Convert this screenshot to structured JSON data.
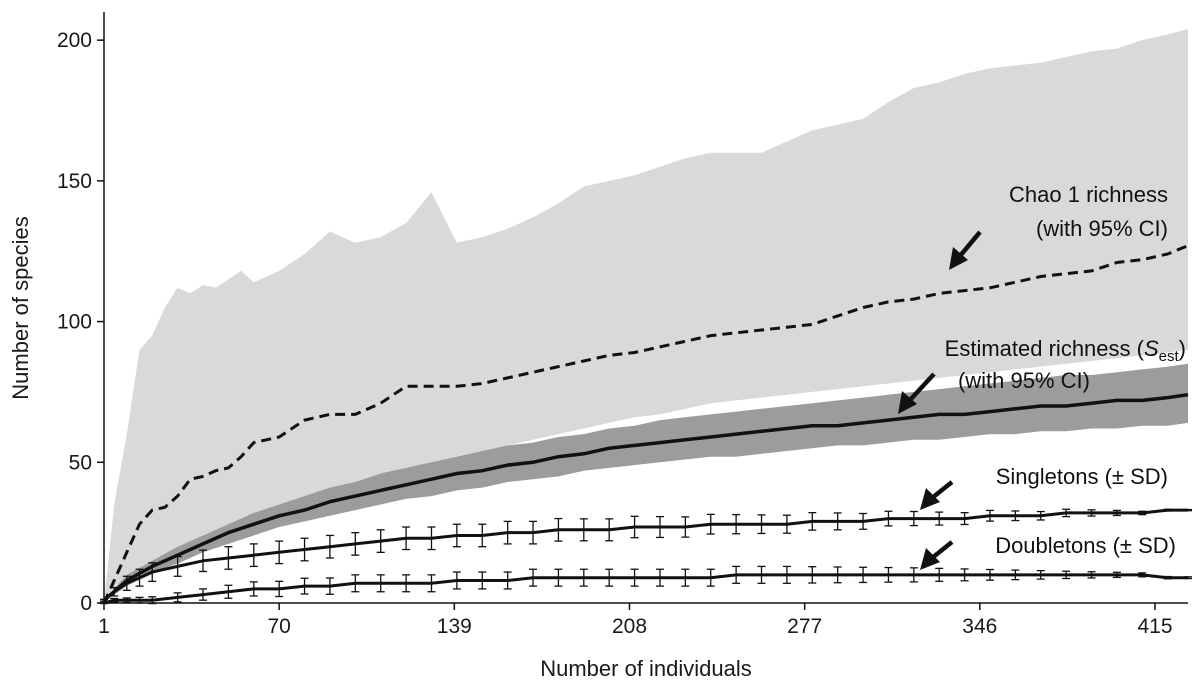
{
  "chart_data": {
    "type": "area",
    "title": "",
    "xlabel": "Number of individuals",
    "ylabel": "Number of species",
    "xlim": [
      1,
      428
    ],
    "ylim": [
      0,
      210
    ],
    "x_ticks": [
      1,
      70,
      139,
      208,
      277,
      346,
      415
    ],
    "y_ticks": [
      0,
      50,
      100,
      150,
      200
    ],
    "grid": false,
    "series": [
      {
        "name": "Chao 1 richness",
        "style": "dashed",
        "color": "#111111",
        "x": [
          1,
          5,
          10,
          15,
          20,
          25,
          30,
          35,
          40,
          45,
          50,
          55,
          60,
          70,
          80,
          90,
          100,
          110,
          120,
          130,
          140,
          150,
          160,
          170,
          180,
          190,
          200,
          210,
          220,
          230,
          240,
          250,
          260,
          270,
          280,
          290,
          300,
          310,
          320,
          330,
          340,
          350,
          360,
          370,
          380,
          390,
          400,
          410,
          420,
          428
        ],
        "values": [
          0,
          8,
          18,
          28,
          33,
          34,
          38,
          44,
          45,
          47,
          48,
          52,
          57,
          59,
          65,
          67,
          67,
          71,
          77,
          77,
          77,
          78,
          80,
          82,
          84,
          86,
          88,
          89,
          91,
          93,
          95,
          96,
          97,
          98,
          99,
          102,
          105,
          107,
          108,
          110,
          111,
          112,
          114,
          116,
          117,
          118,
          121,
          122,
          124,
          127
        ]
      },
      {
        "name": "Chao 1 95% CI",
        "style": "band",
        "color": "#d9d9d9",
        "x": [
          1,
          5,
          10,
          15,
          20,
          25,
          30,
          35,
          40,
          45,
          50,
          55,
          60,
          70,
          80,
          90,
          100,
          110,
          120,
          130,
          140,
          150,
          160,
          170,
          180,
          190,
          200,
          210,
          220,
          230,
          240,
          250,
          260,
          270,
          280,
          290,
          300,
          310,
          320,
          330,
          340,
          350,
          360,
          370,
          380,
          390,
          400,
          410,
          420,
          428
        ],
        "upper": [
          0,
          35,
          60,
          90,
          95,
          105,
          112,
          110,
          113,
          112,
          115,
          118,
          114,
          118,
          124,
          132,
          128,
          130,
          135,
          146,
          128,
          130,
          133,
          137,
          142,
          148,
          150,
          152,
          155,
          158,
          160,
          160,
          160,
          164,
          168,
          170,
          172,
          178,
          183,
          185,
          188,
          190,
          191,
          192,
          194,
          196,
          197,
          200,
          202,
          204
        ],
        "lower": [
          0,
          3,
          6,
          8,
          10,
          13,
          15,
          17,
          20,
          22,
          25,
          27,
          29,
          32,
          35,
          38,
          40,
          43,
          46,
          48,
          51,
          53,
          56,
          58,
          60,
          62,
          64,
          66,
          67,
          69,
          71,
          72,
          73,
          74,
          75,
          76,
          77,
          78,
          79,
          80,
          81,
          82,
          83,
          84,
          85,
          86,
          87,
          88,
          89,
          90
        ]
      },
      {
        "name": "Estimated richness (S_est)",
        "style": "solid",
        "color": "#111111",
        "x": [
          1,
          5,
          10,
          20,
          30,
          40,
          50,
          60,
          70,
          80,
          90,
          100,
          110,
          120,
          130,
          140,
          150,
          160,
          170,
          180,
          190,
          200,
          210,
          220,
          230,
          240,
          250,
          260,
          270,
          280,
          290,
          300,
          310,
          320,
          330,
          340,
          350,
          360,
          370,
          380,
          390,
          400,
          410,
          420,
          428
        ],
        "values": [
          1,
          4,
          8,
          13,
          17,
          21,
          25,
          28,
          31,
          33,
          36,
          38,
          40,
          42,
          44,
          46,
          47,
          49,
          50,
          52,
          53,
          55,
          56,
          57,
          58,
          59,
          60,
          61,
          62,
          63,
          63,
          64,
          65,
          66,
          67,
          67,
          68,
          69,
          70,
          70,
          71,
          72,
          72,
          73,
          74
        ]
      },
      {
        "name": "Estimated richness 95% CI",
        "style": "band",
        "color": "#9c9c9c",
        "x": [
          1,
          5,
          10,
          20,
          30,
          40,
          50,
          60,
          70,
          80,
          90,
          100,
          110,
          120,
          130,
          140,
          150,
          160,
          170,
          180,
          190,
          200,
          210,
          220,
          230,
          240,
          250,
          260,
          270,
          280,
          290,
          300,
          310,
          320,
          330,
          340,
          350,
          360,
          370,
          380,
          390,
          400,
          410,
          420,
          428
        ],
        "upper": [
          1,
          5,
          10,
          15,
          20,
          24,
          28,
          32,
          35,
          38,
          41,
          43,
          46,
          48,
          50,
          52,
          54,
          56,
          57,
          59,
          60,
          62,
          63,
          65,
          66,
          67,
          68,
          69,
          70,
          71,
          72,
          73,
          74,
          75,
          76,
          77,
          78,
          79,
          80,
          81,
          81,
          82,
          83,
          84,
          85
        ],
        "lower": [
          1,
          3,
          6,
          11,
          14,
          18,
          21,
          24,
          27,
          29,
          31,
          33,
          35,
          37,
          38,
          40,
          41,
          43,
          44,
          45,
          47,
          48,
          49,
          50,
          51,
          52,
          52,
          53,
          54,
          55,
          56,
          56,
          57,
          58,
          58,
          59,
          60,
          60,
          61,
          61,
          62,
          62,
          63,
          63,
          64
        ]
      },
      {
        "name": "Singletons",
        "style": "solid-errorbars",
        "color": "#111111",
        "x": [
          1,
          5,
          10,
          15,
          20,
          30,
          40,
          50,
          60,
          70,
          80,
          90,
          100,
          110,
          120,
          130,
          140,
          150,
          160,
          170,
          180,
          190,
          200,
          210,
          220,
          230,
          240,
          250,
          260,
          270,
          280,
          290,
          300,
          310,
          320,
          330,
          340,
          350,
          360,
          370,
          380,
          390,
          400,
          410,
          420,
          428
        ],
        "values": [
          1,
          4,
          7,
          9,
          11,
          13,
          15,
          16,
          17,
          18,
          19,
          20,
          21,
          22,
          23,
          23,
          24,
          24,
          25,
          25,
          26,
          26,
          26,
          27,
          27,
          27,
          28,
          28,
          28,
          28,
          29,
          29,
          29,
          30,
          30,
          30,
          30,
          31,
          31,
          31,
          32,
          32,
          32,
          32,
          33,
          33
        ],
        "sd": [
          0.3,
          1.5,
          2.5,
          3,
          3.3,
          3.5,
          3.8,
          4,
          4,
          4,
          4,
          4,
          4,
          4,
          4,
          4,
          4,
          4,
          4,
          4,
          4,
          3.9,
          3.9,
          3.8,
          3.7,
          3.6,
          3.5,
          3.4,
          3.3,
          3.2,
          3.1,
          3,
          2.8,
          2.6,
          2.5,
          2.3,
          2.1,
          1.9,
          1.7,
          1.5,
          1.3,
          1.1,
          0.9,
          0.6,
          0.3,
          0.2
        ]
      },
      {
        "name": "Doubletons",
        "style": "solid-errorbars",
        "color": "#111111",
        "x": [
          1,
          5,
          10,
          15,
          20,
          30,
          40,
          50,
          60,
          70,
          80,
          90,
          100,
          110,
          120,
          130,
          140,
          150,
          160,
          170,
          180,
          190,
          200,
          210,
          220,
          230,
          240,
          250,
          260,
          270,
          280,
          290,
          300,
          310,
          320,
          330,
          340,
          350,
          360,
          370,
          380,
          390,
          400,
          410,
          420,
          428
        ],
        "values": [
          0,
          1,
          1,
          1,
          1,
          2,
          3,
          4,
          5,
          5,
          6,
          6,
          7,
          7,
          7,
          7,
          8,
          8,
          8,
          9,
          9,
          9,
          9,
          9,
          9,
          9,
          9,
          10,
          10,
          10,
          10,
          10,
          10,
          10,
          10,
          10,
          10,
          10,
          10,
          10,
          10,
          10,
          10,
          10,
          9,
          9
        ],
        "sd": [
          0.2,
          0.6,
          0.8,
          1,
          1.2,
          1.6,
          2,
          2.3,
          2.5,
          2.7,
          2.8,
          2.9,
          3,
          3,
          3,
          3,
          3,
          3,
          3,
          3,
          3,
          3,
          3,
          3,
          3,
          3,
          3,
          3,
          3,
          3,
          2.9,
          2.8,
          2.7,
          2.6,
          2.5,
          2.3,
          2.1,
          1.9,
          1.7,
          1.5,
          1.3,
          1.1,
          0.9,
          0.7,
          0.4,
          0.3
        ]
      }
    ],
    "annotations": [
      {
        "id": "chao",
        "lines": [
          "Chao 1 richness",
          "(with 95% CI)"
        ]
      },
      {
        "id": "sest",
        "line1_prefix": "Estimated richness (",
        "line1_symbol": "S",
        "line1_subscript": "est",
        "line1_suffix": ")",
        "line2": "(with 95% CI)"
      },
      {
        "id": "single",
        "lines": [
          "Singletons (± SD)"
        ]
      },
      {
        "id": "double",
        "lines": [
          "Doubletons (± SD)"
        ]
      }
    ]
  }
}
